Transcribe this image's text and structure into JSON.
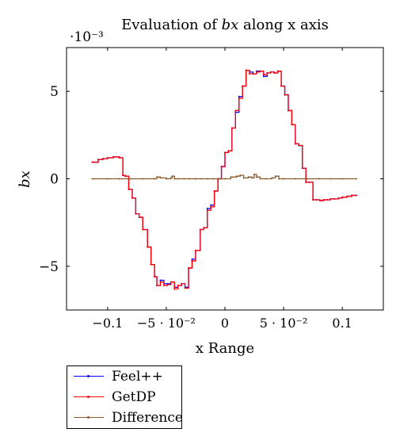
{
  "chart_data": {
    "type": "line",
    "title_prefix": "Evaluation of ",
    "title_var": "bx",
    "title_suffix": " along x axis",
    "exponent_label": "·10⁻³",
    "xlabel": "x Range",
    "ylabel": "bx",
    "xlim": [
      -0.135,
      0.135
    ],
    "ylim": [
      -7.5,
      7.5
    ],
    "x_ticks": [
      {
        "value": -0.1,
        "label": "−0.1"
      },
      {
        "value": -0.05,
        "label": "−5 · 10⁻²"
      },
      {
        "value": 0,
        "label": "0"
      },
      {
        "value": 0.05,
        "label": "5 · 10⁻²"
      },
      {
        "value": 0.1,
        "label": "0.1"
      }
    ],
    "y_ticks": [
      {
        "value": -5,
        "label": "−5"
      },
      {
        "value": 0,
        "label": "0"
      },
      {
        "value": 5,
        "label": "5"
      }
    ],
    "grid": false,
    "legend_position": "below-left",
    "series": [
      {
        "name": "Feel++",
        "color": "#0000ff",
        "x": [
          -0.113,
          -0.108,
          -0.104,
          -0.1,
          -0.095,
          -0.09,
          -0.087,
          -0.085,
          -0.082,
          -0.079,
          -0.076,
          -0.073,
          -0.07,
          -0.066,
          -0.063,
          -0.06,
          -0.058,
          -0.055,
          -0.052,
          -0.049,
          -0.046,
          -0.043,
          -0.04,
          -0.037,
          -0.034,
          -0.031,
          -0.028,
          -0.025,
          -0.021,
          -0.018,
          -0.015,
          -0.012,
          -0.009,
          -0.006,
          -0.003,
          0,
          0.003,
          0.006,
          0.009,
          0.012,
          0.015,
          0.018,
          0.021,
          0.024,
          0.027,
          0.03,
          0.033,
          0.036,
          0.039,
          0.042,
          0.045,
          0.048,
          0.051,
          0.054,
          0.057,
          0.06,
          0.063,
          0.066,
          0.069,
          0.072,
          0.075,
          0.078,
          0.081,
          0.084,
          0.087,
          0.09,
          0.093,
          0.097,
          0.1,
          0.104,
          0.108,
          0.112
        ],
        "y": [
          0.95,
          1.1,
          1.15,
          1.2,
          1.25,
          1.2,
          0.2,
          0.15,
          -0.6,
          -1.1,
          -2.0,
          -2.2,
          -2.9,
          -3.9,
          -4.9,
          -5.6,
          -6.1,
          -5.8,
          -6.0,
          -6.0,
          -5.9,
          -6.2,
          -6.1,
          -6.0,
          -6.2,
          -5.1,
          -4.6,
          -4.1,
          -2.9,
          -2.8,
          -1.7,
          -1.5,
          -0.7,
          0.0,
          0.7,
          1.5,
          1.6,
          2.9,
          3.8,
          4.7,
          5.3,
          6.2,
          6.1,
          6.0,
          6.15,
          6.15,
          5.85,
          6.05,
          6.1,
          6.05,
          6.15,
          5.3,
          4.8,
          3.9,
          3.1,
          2.0,
          1.9,
          0.6,
          -0.2,
          -0.2,
          -1.2,
          -1.2,
          -1.25,
          -1.2,
          -1.2,
          -1.15,
          -1.15,
          -1.1,
          -1.05,
          -1.0,
          -0.95,
          -0.95
        ]
      },
      {
        "name": "GetDP",
        "color": "#ff0000",
        "x": [
          -0.113,
          -0.108,
          -0.104,
          -0.1,
          -0.095,
          -0.09,
          -0.087,
          -0.085,
          -0.082,
          -0.079,
          -0.076,
          -0.073,
          -0.07,
          -0.066,
          -0.063,
          -0.06,
          -0.058,
          -0.055,
          -0.052,
          -0.049,
          -0.046,
          -0.043,
          -0.04,
          -0.037,
          -0.034,
          -0.031,
          -0.028,
          -0.025,
          -0.021,
          -0.018,
          -0.015,
          -0.012,
          -0.009,
          -0.006,
          -0.003,
          0,
          0.003,
          0.006,
          0.009,
          0.012,
          0.015,
          0.018,
          0.021,
          0.024,
          0.027,
          0.03,
          0.033,
          0.036,
          0.039,
          0.042,
          0.045,
          0.048,
          0.051,
          0.054,
          0.057,
          0.06,
          0.063,
          0.066,
          0.069,
          0.072,
          0.075,
          0.078,
          0.081,
          0.084,
          0.087,
          0.09,
          0.093,
          0.097,
          0.1,
          0.104,
          0.108,
          0.112
        ],
        "y": [
          0.95,
          1.1,
          1.15,
          1.2,
          1.25,
          1.2,
          0.2,
          0.15,
          -0.6,
          -1.1,
          -2.0,
          -2.2,
          -2.9,
          -3.9,
          -4.9,
          -5.6,
          -6.1,
          -5.9,
          -6.1,
          -6.05,
          -5.9,
          -6.3,
          -6.1,
          -6.0,
          -6.25,
          -5.1,
          -4.7,
          -4.1,
          -2.9,
          -2.8,
          -1.8,
          -1.6,
          -0.7,
          0.0,
          0.7,
          1.5,
          1.6,
          2.9,
          3.9,
          4.6,
          5.3,
          6.2,
          6.0,
          6.0,
          6.1,
          6.15,
          5.95,
          6.05,
          6.1,
          6.05,
          6.15,
          5.3,
          4.8,
          3.9,
          3.1,
          2.0,
          1.9,
          0.6,
          -0.2,
          -0.2,
          -1.2,
          -1.2,
          -1.25,
          -1.2,
          -1.2,
          -1.15,
          -1.15,
          -1.1,
          -1.05,
          -1.0,
          -0.95,
          -0.95
        ]
      },
      {
        "name": "Difference",
        "color": "#8b5a2b",
        "x": [
          -0.113,
          -0.1,
          -0.09,
          -0.08,
          -0.07,
          -0.06,
          -0.058,
          -0.055,
          -0.05,
          -0.046,
          -0.045,
          -0.043,
          -0.04,
          -0.035,
          -0.03,
          -0.025,
          -0.02,
          -0.015,
          -0.01,
          -0.005,
          0,
          0.005,
          0.01,
          0.013,
          0.016,
          0.02,
          0.023,
          0.025,
          0.027,
          0.03,
          0.035,
          0.04,
          0.043,
          0.046,
          0.05,
          0.06,
          0.07,
          0.08,
          0.09,
          0.1,
          0.112
        ],
        "y": [
          0.0,
          0.0,
          0.0,
          0.0,
          0.0,
          0.0,
          0.1,
          0.05,
          0.0,
          0.05,
          0.15,
          0.0,
          0.0,
          0.0,
          0.0,
          0.0,
          0.0,
          0.0,
          0.0,
          0.0,
          0.0,
          0.1,
          0.15,
          0.2,
          0.05,
          0.1,
          0.05,
          0.25,
          0.1,
          0.0,
          0.0,
          0.05,
          0.15,
          0.0,
          0.0,
          0.0,
          0.0,
          0.0,
          0.0,
          0.0,
          0.0
        ]
      }
    ]
  }
}
